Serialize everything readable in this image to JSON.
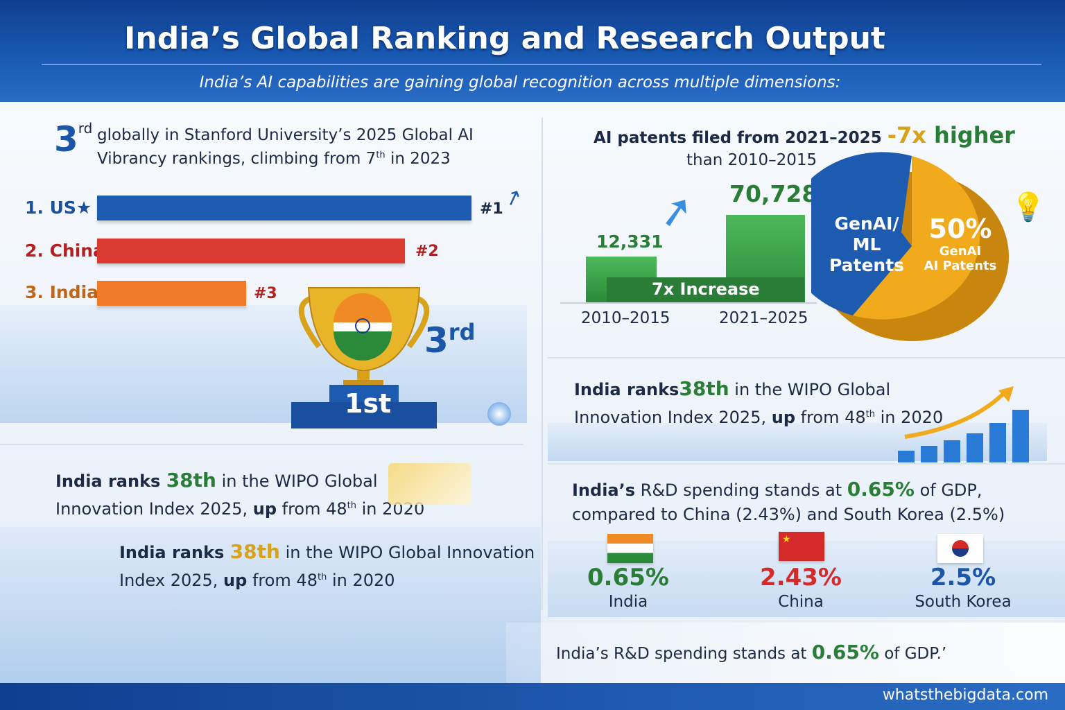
{
  "header": {
    "title": "India’s Global Ranking and Research Output",
    "subtitle": "India’s AI capabilities are gaining global recognition across multiple dimensions:"
  },
  "stanford": {
    "rank_num": "3",
    "rank_sup": "rd",
    "line1": "globally in Stanford University’s 2025 Global AI",
    "line2_a": "Vibrancy rankings, climbing from 7",
    "line2_sup": "th",
    "line2_b": " in 2023",
    "bars": [
      {
        "label": "1. US",
        "rank": "#1",
        "color": "#1d5bb0",
        "value": 1
      },
      {
        "label": "2. China",
        "rank": "#2",
        "color": "#d93a30",
        "value": 2
      },
      {
        "label": "3. India",
        "rank": "#3",
        "color": "#ee7a2a",
        "value": 3
      }
    ],
    "podium_label": "1st",
    "badge_num": "3",
    "badge_sup": "rd"
  },
  "wipo_left_1": {
    "a": "India ranks ",
    "rank": "38th",
    "b": " in the WIPO Global",
    "c": "Innovation Index 2025, ",
    "d": "up",
    "e": " from 48",
    "sup": "th",
    "f": " in 2020"
  },
  "wipo_left_2": {
    "a": "India ranks ",
    "rank": "38th",
    "b": " in the WIPO Global Innovation",
    "c": "Index 2025, ",
    "d": "up",
    "e": " from 48",
    "sup": "th",
    "f": " in 2020"
  },
  "patents": {
    "title_a": "AI patents filed from 2021–2025 ",
    "title_b": "-7x",
    "title_c": " higher",
    "title_d": "than 2010–2015",
    "bars": [
      {
        "period": "2010–2015",
        "value": "12,331"
      },
      {
        "period": "2021–2025",
        "value": "70,728"
      }
    ],
    "increase_label": "7x Increase",
    "pie": {
      "left_label_1": "GenAI/",
      "left_label_2": "ML",
      "left_label_3": "Patents",
      "right_pct": "50%",
      "right_label_1": "GenAI",
      "right_label_2": "AI Patents",
      "colors": [
        "#1d5bb0",
        "#f0aa1c"
      ]
    }
  },
  "wipo_right": {
    "a": "India ranks",
    "rank": "38th",
    "b": " in the WIPO Global",
    "c": "Innovation Index 2025, ",
    "d": "up",
    "e": " from 48",
    "sup": "th",
    "f": " in 2020"
  },
  "rnd": {
    "a": "India’s",
    "b": " R&D spending stands at ",
    "pct": "0.65%",
    "c": " of GDP,",
    "line2": "compared to China (2.43%) and South Korea (2.5%)",
    "countries": [
      {
        "value": "0.65%",
        "name": "India",
        "color": "#2a7d36"
      },
      {
        "value": "2.43%",
        "name": "China",
        "color": "#d42a2a"
      },
      {
        "value": "2.5%",
        "name": "South Korea",
        "color": "#1b56a8"
      }
    ]
  },
  "bottom": {
    "a": "India’s R&D spending stands at ",
    "pct": "0.65%",
    "b": " of GDP.’"
  },
  "footer": {
    "site": "whatsthebigdata.com"
  }
}
